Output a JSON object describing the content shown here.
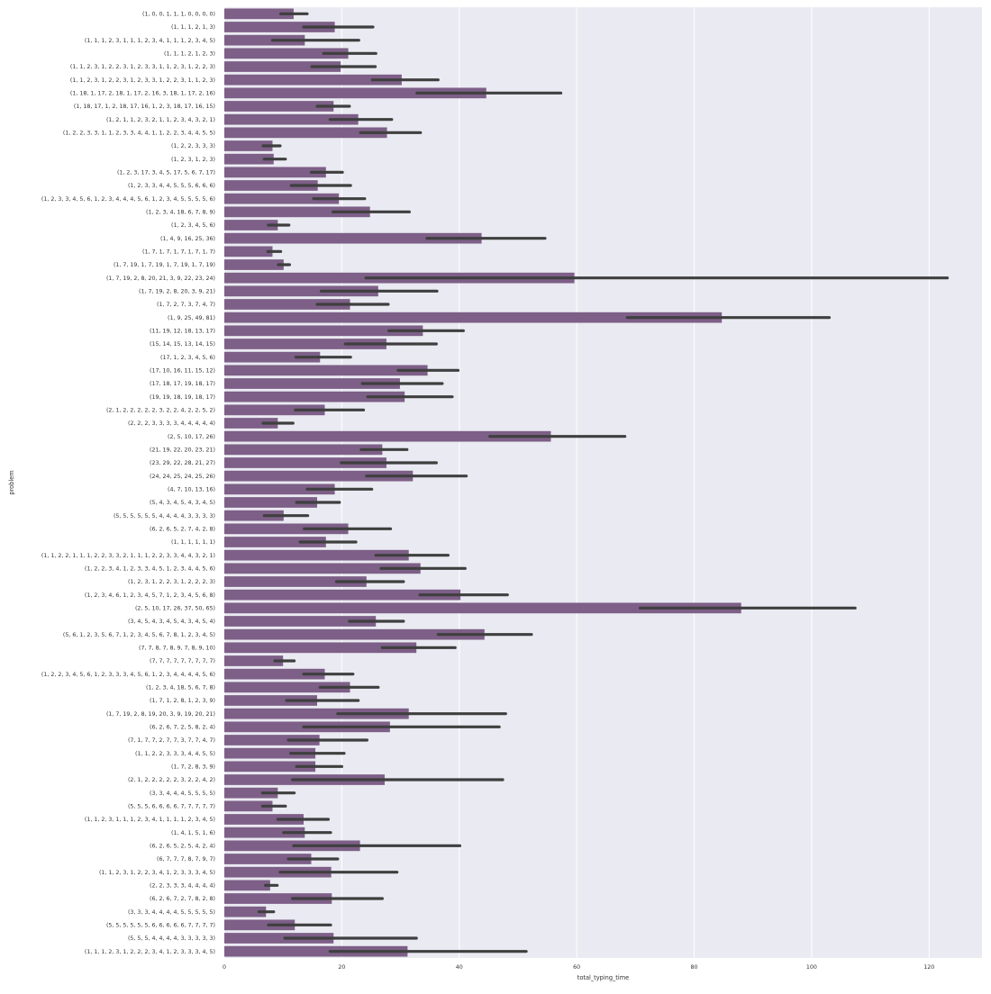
{
  "chart_data": {
    "type": "bar",
    "orientation": "horizontal",
    "title": "",
    "xlabel": "total_typing_time",
    "ylabel": "problem",
    "xlim": [
      0,
      129
    ],
    "xticks": [
      0,
      20,
      40,
      60,
      80,
      100,
      120
    ],
    "grid": true,
    "colors": {
      "bar": "#7d5f87",
      "errorbar": "#3f3f3f",
      "background": "#eaeaf2",
      "grid": "#ffffff"
    },
    "categories": [
      "(1, 0, 0, 1, 1, 1, 0, 0, 0, 0)",
      "(1, 1, 1, 2, 1, 3)",
      "(1, 1, 1, 2, 3, 1, 1, 1, 2, 3, 4, 1, 1, 1, 2, 3, 4, 5)",
      "(1, 1, 1, 2, 1, 2, 3)",
      "(1, 1, 2, 3, 1, 2, 2, 3, 1, 2, 3, 3, 1, 1, 2, 3, 1, 2, 2, 3)",
      "(1, 1, 2, 3, 1, 2, 2, 3, 1, 2, 3, 3, 1, 2, 2, 3, 1, 1, 2, 3)",
      "(1, 18, 1, 17, 2, 18, 1, 17, 2, 16, 3, 18, 1, 17, 2, 16)",
      "(1, 18, 17, 1, 2, 18, 17, 16, 1, 2, 3, 18, 17, 16, 15)",
      "(1, 2, 1, 1, 2, 3, 2, 1, 1, 2, 3, 4, 3, 2, 1)",
      "(1, 2, 2, 3, 3, 1, 1, 2, 3, 3, 4, 4, 1, 1, 2, 2, 3, 4, 4, 5, 5)",
      "(1, 2, 2, 3, 3, 3)",
      "(1, 2, 3, 1, 2, 3)",
      "(1, 2, 3, 17, 3, 4, 5, 17, 5, 6, 7, 17)",
      "(1, 2, 3, 3, 4, 4, 5, 5, 5, 6, 6, 6)",
      "(1, 2, 3, 3, 4, 5, 6, 1, 2, 3, 4, 4, 4, 5, 6, 1, 2, 3, 4, 5, 5, 5, 5, 6)",
      "(1, 2, 3, 4, 18, 6, 7, 8, 9)",
      "(1, 2, 3, 4, 5, 6)",
      "(1, 4, 9, 16, 25, 36)",
      "(1, 7, 1, 7, 1, 7, 1, 7, 1, 7)",
      "(1, 7, 19, 1, 7, 19, 1, 7, 19, 1, 7, 19)",
      "(1, 7, 19, 2, 8, 20, 21, 3, 9, 22, 23, 24)",
      "(1, 7, 19, 2, 8, 20, 3, 9, 21)",
      "(1, 7, 2, 7, 3, 7, 4, 7)",
      "(1, 9, 25, 49, 81)",
      "(11, 19, 12, 18, 13, 17)",
      "(15, 14, 15, 13, 14, 15)",
      "(17, 1, 2, 3, 4, 5, 6)",
      "(17, 10, 16, 11, 15, 12)",
      "(17, 18, 17, 19, 18, 17)",
      "(19, 19, 18, 19, 18, 17)",
      "(2, 1, 2, 2, 2, 2, 2, 3, 2, 2, 4, 2, 2, 5, 2)",
      "(2, 2, 2, 3, 3, 3, 3, 4, 4, 4, 4, 4)",
      "(2, 5, 10, 17, 26)",
      "(21, 19, 22, 20, 23, 21)",
      "(23, 29, 22, 28, 21, 27)",
      "(24, 24, 25, 24, 25, 26)",
      "(4, 7, 10, 13, 16)",
      "(5, 4, 3, 4, 5, 4, 3, 4, 5)",
      "(5, 5, 5, 5, 5, 5, 4, 4, 4, 4, 3, 3, 3, 3)",
      "(6, 2, 6, 5, 2, 7, 4, 2, 8)",
      "(1, 1, 1, 1, 1, 1)",
      "(1, 1, 2, 2, 1, 1, 1, 2, 2, 3, 3, 2, 1, 1, 1, 2, 2, 3, 3, 4, 4, 3, 2, 1)",
      "(1, 2, 2, 3, 4, 1, 2, 3, 3, 4, 5, 1, 2, 3, 4, 4, 5, 6)",
      "(1, 2, 3, 1, 2, 2, 3, 1, 2, 2, 2, 3)",
      "(1, 2, 3, 4, 6, 1, 2, 3, 4, 5, 7, 1, 2, 3, 4, 5, 6, 8)",
      "(2, 5, 10, 17, 26, 37, 50, 65)",
      "(3, 4, 5, 4, 3, 4, 5, 4, 3, 4, 5, 4)",
      "(5, 6, 1, 2, 3, 5, 6, 7, 1, 2, 3, 4, 5, 6, 7, 8, 1, 2, 3, 4, 5)",
      "(7, 7, 8, 7, 8, 9, 7, 8, 9, 10)",
      "(7, 7, 7, 7, 7, 7, 7, 7, 7)",
      "(1, 2, 2, 3, 4, 5, 6, 1, 2, 3, 3, 3, 4, 5, 6, 1, 2, 3, 4, 4, 4, 4, 5, 6)",
      "(1, 2, 3, 4, 18, 5, 6, 7, 8)",
      "(1, 7, 1, 2, 8, 1, 2, 3, 9)",
      "(1, 7, 19, 2, 8, 19, 20, 3, 9, 19, 20, 21)",
      "(6, 2, 6, 7, 2, 5, 8, 2, 4)",
      "(7, 1, 7, 7, 2, 7, 7, 3, 7, 7, 4, 7)",
      "(1, 1, 2, 2, 3, 3, 3, 4, 4, 5, 5)",
      "(1, 7, 2, 8, 3, 9)",
      "(2, 1, 2, 2, 2, 2, 2, 3, 2, 2, 4, 2)",
      "(3, 3, 4, 4, 4, 5, 5, 5, 5)",
      "(5, 5, 5, 6, 6, 6, 6, 7, 7, 7, 7, 7)",
      "(1, 1, 2, 3, 1, 1, 1, 2, 3, 4, 1, 1, 1, 1, 2, 3, 4, 5)",
      "(1, 4, 1, 5, 1, 6)",
      "(6, 2, 6, 5, 2, 5, 4, 2, 4)",
      "(6, 7, 7, 7, 8, 7, 9, 7)",
      "(1, 1, 2, 3, 1, 2, 2, 3, 4, 1, 2, 3, 3, 3, 4, 5)",
      "(2, 2, 3, 3, 3, 4, 4, 4, 4)",
      "(6, 2, 6, 7, 2, 7, 8, 2, 8)",
      "(3, 3, 3, 4, 4, 4, 4, 5, 5, 5, 5, 5)",
      "(5, 5, 5, 5, 5, 5, 6, 6, 6, 6, 6, 7, 7, 7, 7)",
      "(5, 5, 5, 4, 4, 4, 4, 3, 3, 3, 3, 3)",
      "(1, 1, 1, 2, 3, 1, 2, 2, 2, 3, 4, 1, 2, 3, 3, 3, 4, 5)"
    ],
    "values": [
      11.8,
      18.8,
      13.7,
      21.1,
      19.8,
      30.2,
      44.6,
      18.6,
      22.8,
      27.7,
      8.2,
      8.4,
      17.3,
      15.9,
      19.5,
      24.8,
      9.1,
      43.8,
      8.2,
      10.1,
      59.6,
      26.2,
      21.4,
      84.7,
      33.8,
      27.6,
      16.3,
      34.6,
      29.9,
      30.7,
      17.1,
      9.1,
      55.6,
      26.9,
      27.6,
      32.1,
      18.8,
      15.8,
      10.1,
      21.1,
      17.3,
      31.4,
      33.4,
      24.2,
      40.2,
      88.0,
      25.8,
      44.3,
      32.7,
      10.0,
      17.1,
      21.4,
      15.8,
      31.4,
      28.2,
      16.2,
      15.5,
      15.5,
      27.3,
      9.1,
      8.2,
      13.5,
      13.7,
      23.1,
      14.8,
      18.2,
      7.8,
      18.3,
      7.1,
      12.0,
      18.6,
      31.2
    ],
    "ci_low": [
      9.6,
      13.5,
      8.2,
      16.9,
      14.9,
      25.2,
      32.8,
      15.8,
      18.0,
      23.2,
      6.6,
      6.8,
      14.8,
      11.4,
      15.2,
      18.5,
      7.5,
      34.5,
      7.4,
      9.2,
      24.1,
      16.5,
      15.8,
      68.6,
      28.0,
      20.6,
      12.2,
      29.6,
      23.5,
      24.4,
      12.1,
      6.6,
      45.2,
      23.3,
      19.9,
      24.2,
      14.1,
      12.3,
      6.8,
      13.6,
      12.9,
      25.8,
      26.7,
      19.1,
      33.3,
      70.8,
      21.3,
      36.4,
      26.9,
      8.6,
      13.5,
      16.3,
      10.6,
      19.3,
      13.5,
      10.9,
      11.3,
      12.3,
      11.6,
      6.5,
      6.5,
      9.1,
      10.1,
      11.8,
      10.9,
      9.5,
      7.0,
      11.6,
      5.9,
      7.5,
      10.3,
      18.0
    ],
    "ci_high": [
      14.1,
      25.3,
      22.9,
      25.8,
      25.7,
      36.4,
      57.3,
      21.3,
      28.5,
      33.4,
      9.5,
      10.4,
      20.1,
      21.5,
      23.9,
      31.5,
      11.0,
      54.6,
      9.6,
      11.1,
      123.1,
      36.2,
      27.9,
      103.0,
      40.7,
      36.1,
      21.5,
      39.8,
      37.1,
      38.8,
      23.7,
      11.7,
      68.2,
      31.1,
      36.1,
      41.2,
      25.1,
      19.6,
      14.2,
      28.3,
      22.4,
      38.1,
      41.0,
      30.5,
      48.2,
      107.4,
      30.5,
      52.3,
      39.3,
      11.9,
      21.9,
      26.2,
      22.8,
      47.9,
      46.8,
      24.3,
      20.4,
      20.0,
      47.4,
      11.9,
      10.4,
      17.7,
      18.1,
      40.1,
      19.3,
      29.4,
      9.0,
      26.9,
      8.4,
      18.1,
      32.7,
      51.4
    ]
  }
}
